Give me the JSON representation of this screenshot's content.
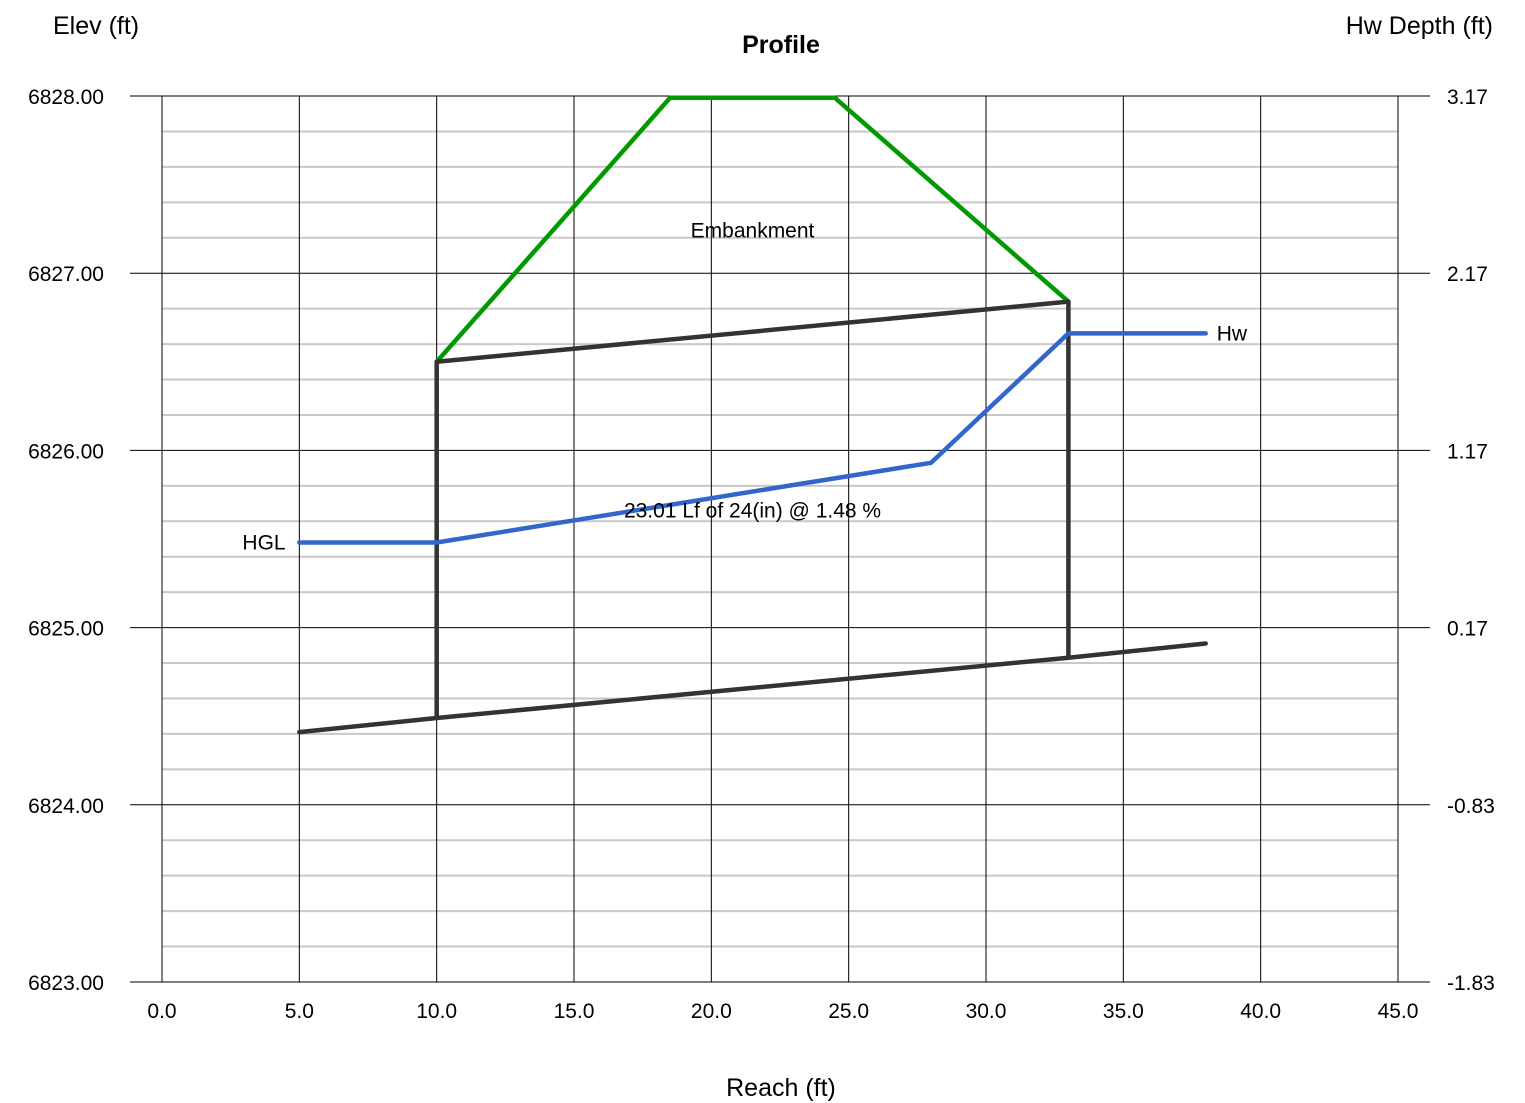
{
  "chart_data": {
    "type": "line",
    "title": "Profile",
    "xlabel": "Reach (ft)",
    "ylabel_left": "Elev (ft)",
    "ylabel_right": "Hw Depth (ft)",
    "xlim": [
      0,
      45
    ],
    "ylim": [
      6823,
      6828
    ],
    "y2lim": [
      -1.83,
      3.17
    ],
    "x_ticks": [
      "0.0",
      "5.0",
      "10.0",
      "15.0",
      "20.0",
      "25.0",
      "30.0",
      "35.0",
      "40.0",
      "45.0"
    ],
    "y_ticks": [
      "6823.00",
      "6824.00",
      "6825.00",
      "6826.00",
      "6827.00",
      "6828.00"
    ],
    "y2_ticks": [
      "-1.83",
      "-0.83",
      "0.17",
      "1.17",
      "2.17",
      "3.17"
    ],
    "grid": true,
    "series": [
      {
        "key": "embankment",
        "color": "#009900",
        "points": [
          [
            10.0,
            6826.5
          ],
          [
            18.5,
            6827.99
          ],
          [
            24.5,
            6827.99
          ],
          [
            33.0,
            6826.84
          ]
        ]
      },
      {
        "key": "culvert-crown",
        "color": "#333333",
        "points": [
          [
            10.0,
            6826.5
          ],
          [
            33.0,
            6826.84
          ]
        ]
      },
      {
        "key": "culvert-invert",
        "color": "#333333",
        "points": [
          [
            5.0,
            6824.41
          ],
          [
            10.0,
            6824.49
          ],
          [
            33.0,
            6824.83
          ],
          [
            38.0,
            6824.91
          ]
        ]
      },
      {
        "key": "inlet-wall",
        "color": "#333333",
        "points": [
          [
            10.0,
            6826.5
          ],
          [
            10.0,
            6824.49
          ]
        ]
      },
      {
        "key": "outlet-wall",
        "color": "#333333",
        "points": [
          [
            33.0,
            6826.84
          ],
          [
            33.0,
            6824.83
          ]
        ]
      },
      {
        "key": "hgl",
        "name": "HGL",
        "color": "#3366cc",
        "points": [
          [
            5.0,
            6825.48
          ],
          [
            10.0,
            6825.48
          ],
          [
            28.0,
            6825.93
          ],
          [
            33.0,
            6826.66
          ],
          [
            38.0,
            6826.66
          ]
        ]
      }
    ],
    "annotations": [
      {
        "key": "embankment-label",
        "text": "Embankment",
        "x": 21.5,
        "y": 6827.24
      },
      {
        "key": "culvert-label",
        "text": "23.01 Lf of 24(in) @ 1.48 %",
        "x": 21.5,
        "y": 6825.66
      },
      {
        "key": "hw-label",
        "text": "Hw",
        "x": 38.4,
        "y": 6826.66,
        "color": "#3366cc"
      },
      {
        "key": "hgl-label",
        "text": "HGL",
        "x": 4.5,
        "y": 6825.48,
        "color": "#3366cc"
      }
    ]
  }
}
